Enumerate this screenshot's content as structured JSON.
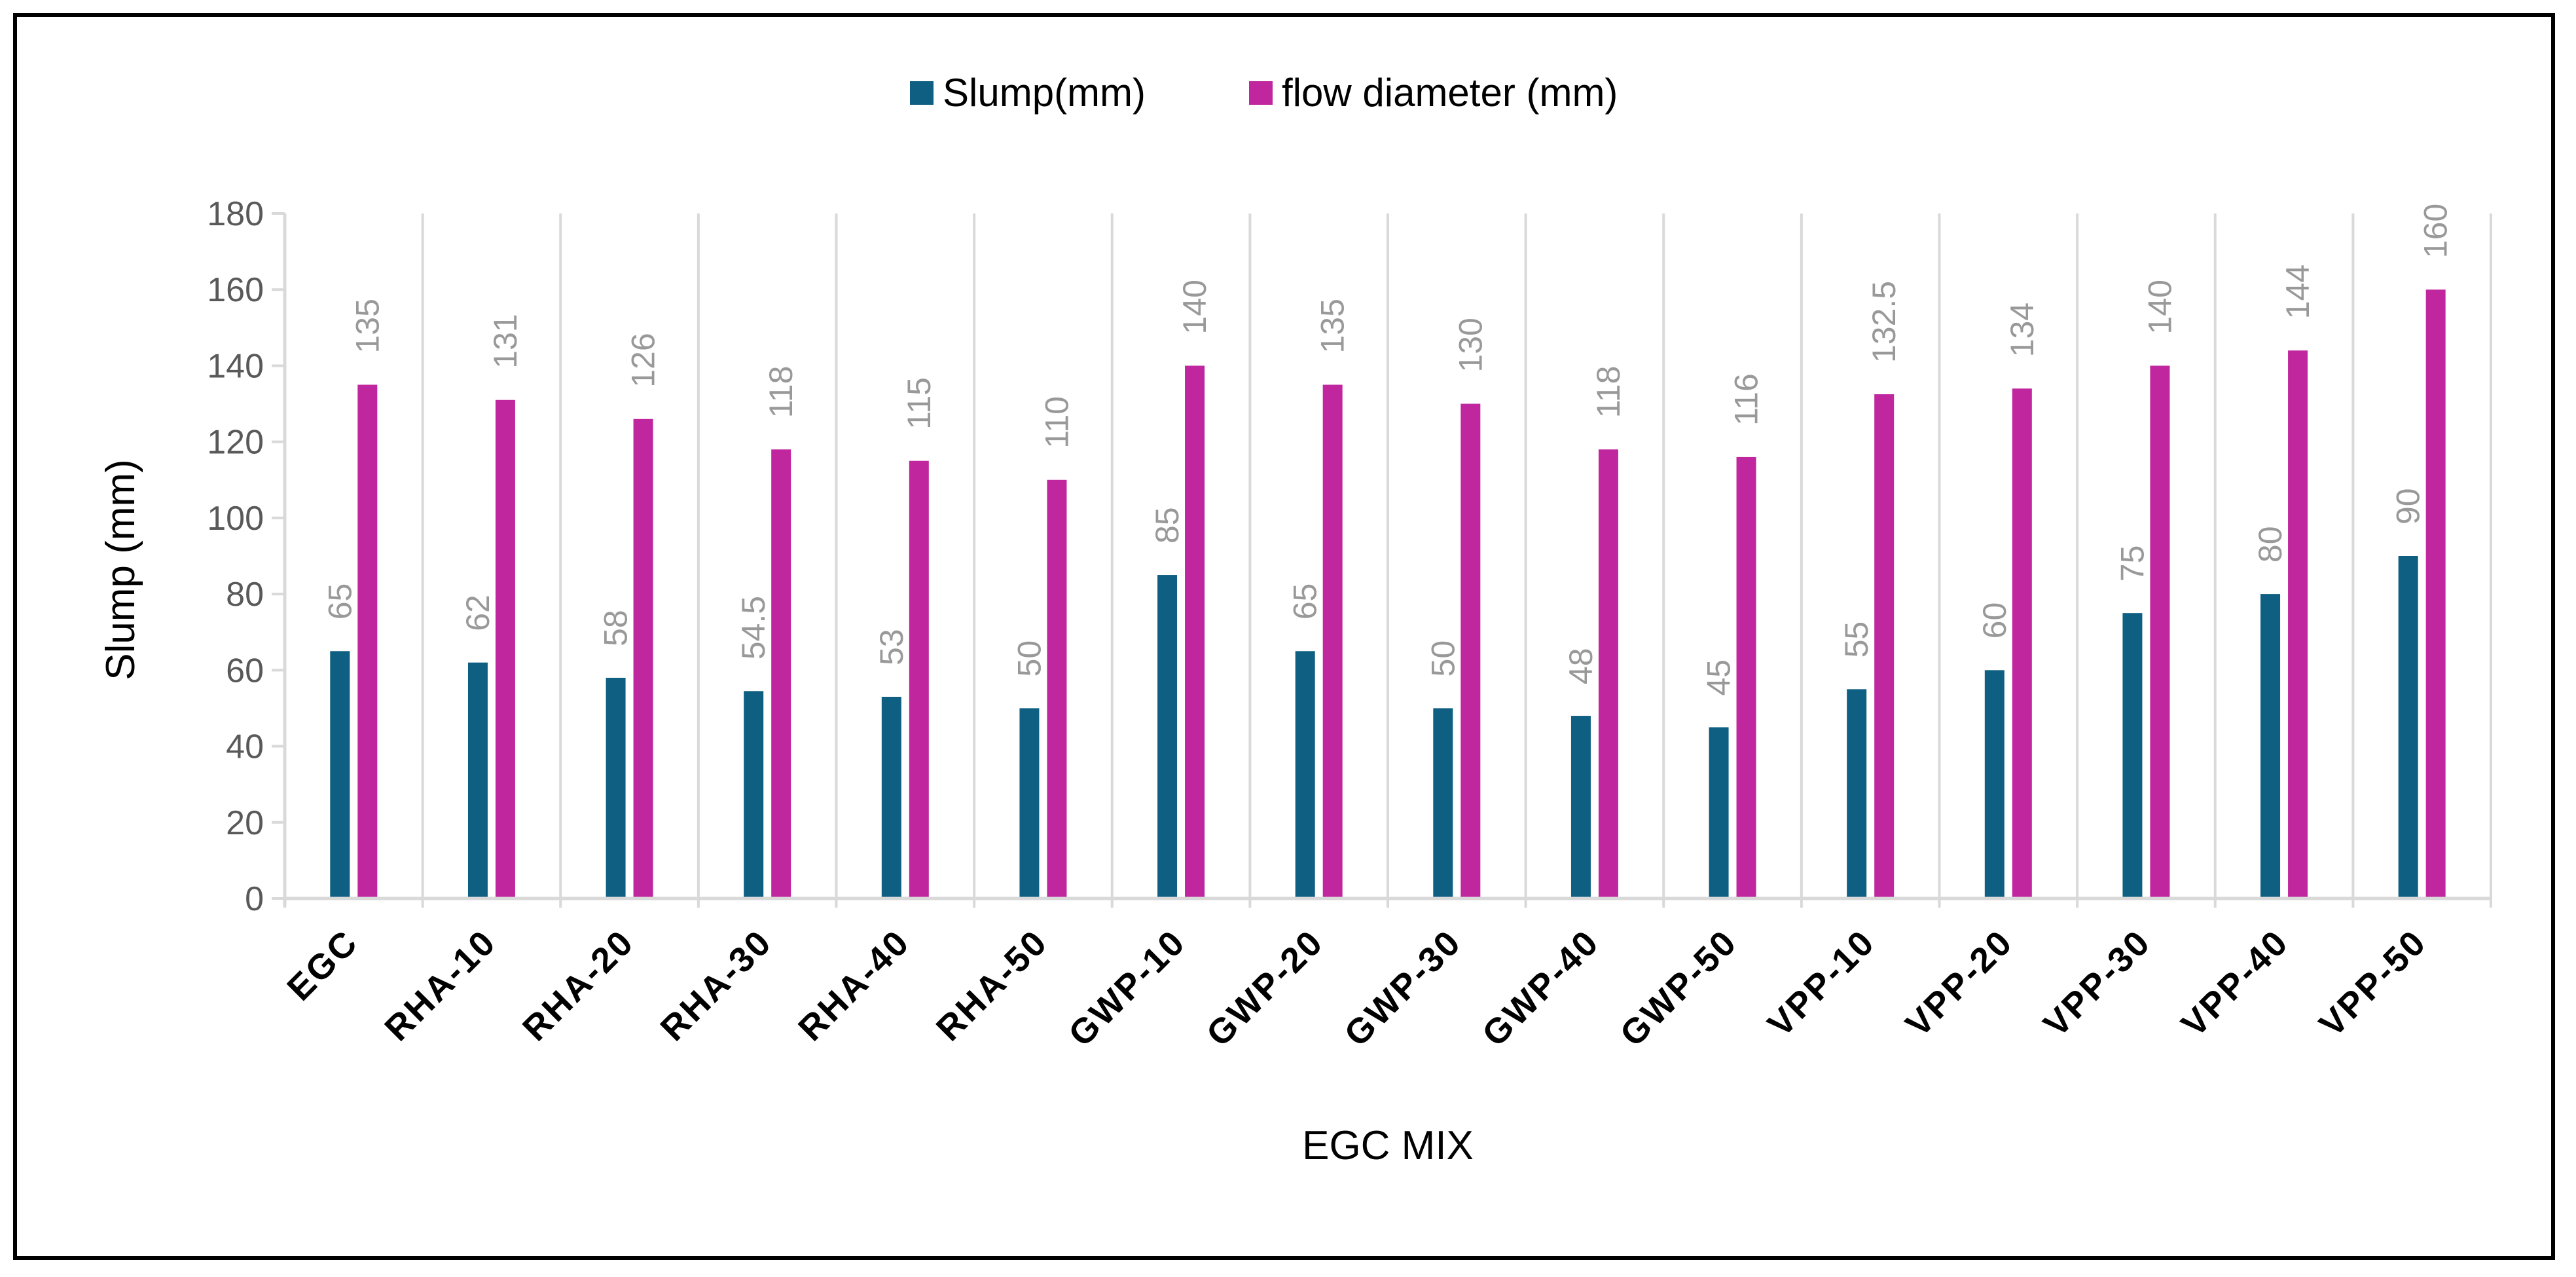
{
  "chart_data": {
    "type": "bar",
    "categories": [
      "EGC",
      "RHA-10",
      "RHA-20",
      "RHA-30",
      "RHA-40",
      "RHA-50",
      "GWP-10",
      "GWP-20",
      "GWP-30",
      "GWP-40",
      "GWP-50",
      "VPP-10",
      "VPP-20",
      "VPP-30",
      "VPP-40",
      "VPP-50"
    ],
    "series": [
      {
        "name": "Slump(mm)",
        "color": "#0E5F82",
        "values": [
          65,
          62,
          58,
          54.5,
          53,
          50,
          85,
          65,
          50,
          48,
          45,
          55,
          60,
          75,
          80,
          90
        ]
      },
      {
        "name": "flow diameter (mm)",
        "color": "#C0279E",
        "values": [
          135,
          131,
          126,
          118,
          115,
          110,
          140,
          135,
          130,
          118,
          116,
          132.5,
          134,
          140,
          144,
          160
        ]
      }
    ],
    "xlabel": "EGC MIX",
    "ylabel": "Slump (mm)",
    "ylim": [
      0,
      180
    ],
    "yticks": [
      0,
      20,
      40,
      60,
      80,
      100,
      120,
      140,
      160,
      180
    ],
    "grid": "vertical",
    "legend_position": "top-center",
    "data_labels": true
  }
}
